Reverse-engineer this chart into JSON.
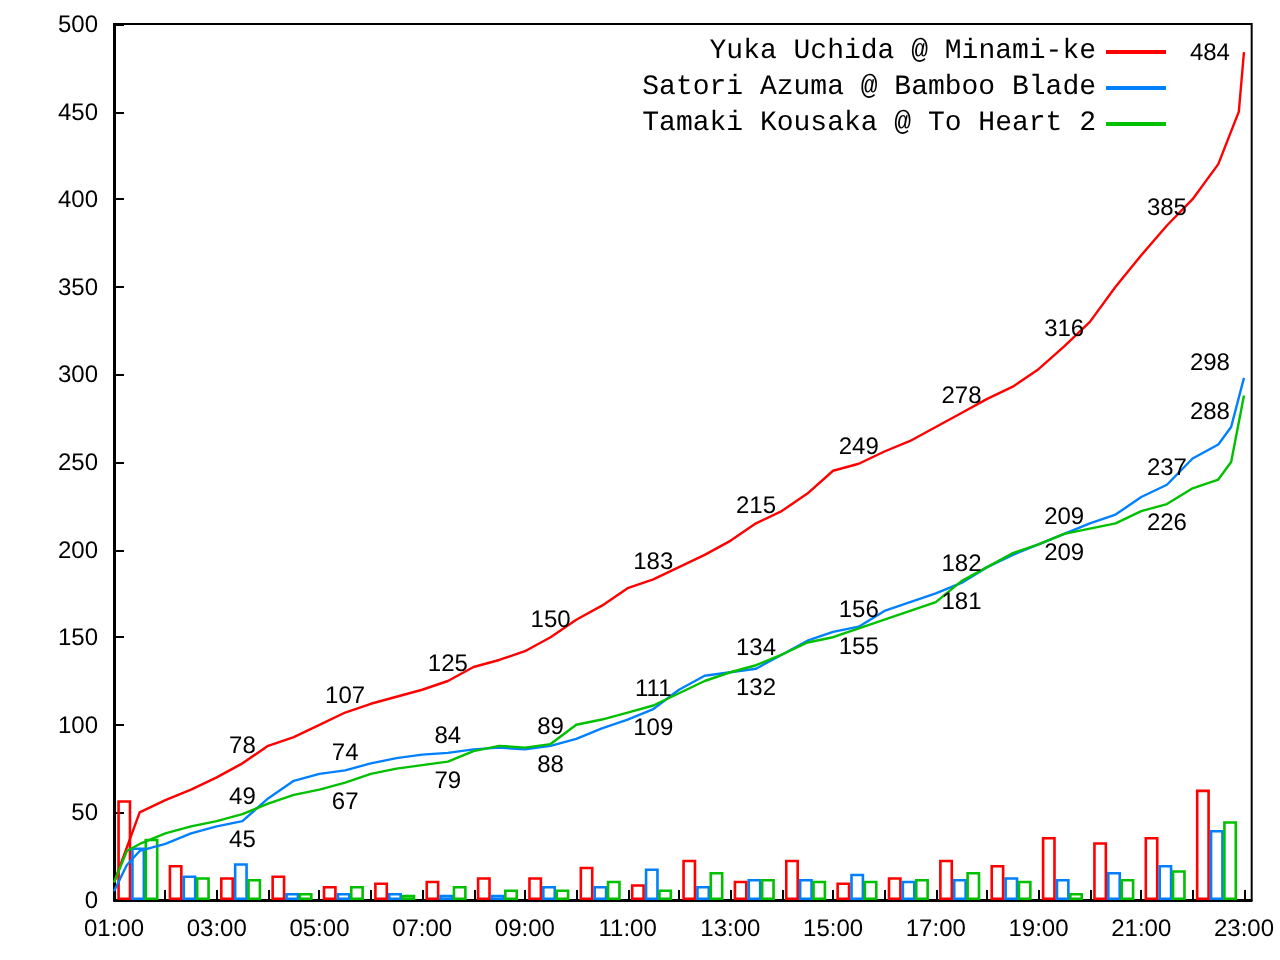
{
  "chart_data": {
    "type": "line",
    "legend": "top right",
    "marker": "none",
    "grid": false,
    "xlim": [
      1,
      23.15
    ],
    "ylim": [
      0,
      500
    ],
    "yticks": [
      0,
      50,
      100,
      150,
      200,
      250,
      300,
      350,
      400,
      450,
      500
    ],
    "xticks": [
      {
        "value": 1,
        "label": "01:00"
      },
      {
        "value": 2,
        "label": null
      },
      {
        "value": 3,
        "label": "03:00"
      },
      {
        "value": 4,
        "label": null
      },
      {
        "value": 5,
        "label": "05:00"
      },
      {
        "value": 6,
        "label": null
      },
      {
        "value": 7,
        "label": "07:00"
      },
      {
        "value": 8,
        "label": null
      },
      {
        "value": 9,
        "label": "09:00"
      },
      {
        "value": 10,
        "label": null
      },
      {
        "value": 11,
        "label": "11:00"
      },
      {
        "value": 12,
        "label": null
      },
      {
        "value": 13,
        "label": "13:00"
      },
      {
        "value": 14,
        "label": null
      },
      {
        "value": 15,
        "label": "15:00"
      },
      {
        "value": 16,
        "label": null
      },
      {
        "value": 17,
        "label": "17:00"
      },
      {
        "value": 18,
        "label": null
      },
      {
        "value": 19,
        "label": "19:00"
      },
      {
        "value": 20,
        "label": null
      },
      {
        "value": 21,
        "label": "21:00"
      },
      {
        "value": 22,
        "label": null
      },
      {
        "value": 23,
        "label": "23:00"
      }
    ],
    "series": [
      {
        "type": "bar",
        "color": "#ff0000",
        "x": [
          1.2,
          2.2,
          3.2,
          4.2,
          5.2,
          6.2,
          7.2,
          8.2,
          9.2,
          10.2,
          11.2,
          12.2,
          13.2,
          14.2,
          15.2,
          16.2,
          17.2,
          18.2,
          19.2,
          20.2,
          21.2,
          22.2
        ],
        "values": [
          57,
          20,
          13,
          14,
          8,
          10,
          11,
          13,
          13,
          19,
          9,
          23,
          11,
          23,
          10,
          13,
          23,
          20,
          36,
          33,
          36,
          63
        ]
      },
      {
        "type": "bar",
        "color": "#0080ff",
        "x": [
          1.47,
          2.47,
          3.47,
          4.47,
          5.47,
          6.47,
          7.47,
          8.47,
          9.47,
          10.47,
          11.47,
          12.47,
          13.47,
          14.47,
          15.47,
          16.47,
          17.47,
          18.47,
          19.47,
          20.47,
          21.47,
          22.47
        ],
        "values": [
          30,
          14,
          21,
          4,
          4,
          4,
          3,
          3,
          8,
          8,
          18,
          8,
          12,
          12,
          15,
          11,
          12,
          13,
          12,
          16,
          20,
          40
        ]
      },
      {
        "type": "bar",
        "color": "#00c000",
        "x": [
          1.73,
          2.73,
          3.73,
          4.73,
          5.73,
          6.73,
          7.73,
          8.73,
          9.73,
          10.73,
          11.73,
          12.73,
          13.73,
          14.73,
          15.73,
          16.73,
          17.73,
          18.73,
          19.73,
          20.73,
          21.73,
          22.73
        ],
        "values": [
          35,
          13,
          12,
          4,
          8,
          3,
          8,
          6,
          6,
          11,
          6,
          16,
          12,
          11,
          11,
          12,
          16,
          11,
          4,
          12,
          17,
          45
        ]
      },
      {
        "name": "Yuka Uchida @ Minami-ke",
        "color": "#ff0000",
        "x": [
          1,
          1.5,
          2,
          2.5,
          3,
          3.5,
          4,
          4.5,
          5,
          5.5,
          6,
          6.5,
          7,
          7.5,
          8,
          8.5,
          9,
          9.5,
          10,
          10.5,
          11,
          11.5,
          12,
          12.5,
          13,
          13.5,
          14,
          14.5,
          15,
          15.5,
          16,
          16.5,
          17,
          17.5,
          18,
          18.5,
          19,
          19.5,
          20,
          20.5,
          21,
          21.5,
          22,
          22.5,
          22.9,
          23
        ],
        "values": [
          10,
          50,
          57,
          63,
          70,
          78,
          88,
          93,
          100,
          107,
          112,
          116,
          120,
          125,
          133,
          137,
          142,
          150,
          160,
          168,
          178,
          183,
          190,
          197,
          205,
          215,
          222,
          232,
          245,
          249,
          256,
          262,
          270,
          278,
          286,
          293,
          303,
          316,
          330,
          350,
          368,
          385,
          400,
          420,
          450,
          484
        ],
        "value_labels": [
          null,
          null,
          null,
          null,
          null,
          "78",
          null,
          null,
          null,
          "107",
          null,
          null,
          null,
          "125",
          null,
          null,
          null,
          "150",
          null,
          null,
          null,
          "183",
          null,
          null,
          null,
          "215",
          null,
          null,
          null,
          "249",
          null,
          null,
          null,
          "278",
          null,
          null,
          null,
          "316",
          null,
          null,
          null,
          "385",
          null,
          null,
          null,
          "484"
        ]
      },
      {
        "name": "Satori Azuma @ Bamboo Blade",
        "color": "#0080ff",
        "x": [
          1,
          1.25,
          1.5,
          2,
          2.5,
          3,
          3.5,
          4,
          4.5,
          5,
          5.5,
          6,
          6.5,
          7,
          7.5,
          8,
          8.5,
          9,
          9.5,
          10,
          10.5,
          11,
          11.5,
          12,
          12.5,
          13,
          13.5,
          14,
          14.5,
          15,
          15.5,
          16,
          16.5,
          17,
          17.5,
          18,
          18.5,
          19,
          19.5,
          20,
          20.5,
          21,
          21.5,
          22,
          22.5,
          22.75,
          23
        ],
        "values": [
          5,
          20,
          28,
          32,
          38,
          42,
          45,
          58,
          68,
          72,
          74,
          78,
          81,
          83,
          84,
          86,
          87,
          86,
          88,
          92,
          98,
          103,
          109,
          120,
          128,
          130,
          132,
          140,
          148,
          153,
          156,
          165,
          170,
          175,
          181,
          190,
          197,
          203,
          209,
          215,
          220,
          230,
          237,
          252,
          260,
          270,
          298
        ],
        "value_labels": [
          null,
          null,
          null,
          null,
          null,
          null,
          "45",
          null,
          null,
          null,
          "74",
          null,
          null,
          null,
          "84",
          null,
          null,
          null,
          "88",
          null,
          null,
          null,
          "109",
          null,
          null,
          null,
          "132",
          null,
          null,
          null,
          "156",
          null,
          null,
          null,
          "181",
          null,
          null,
          null,
          "209",
          null,
          null,
          null,
          "237",
          null,
          null,
          null,
          "298"
        ]
      },
      {
        "name": "Tamaki Kousaka @ To Heart 2",
        "color": "#00c000",
        "x": [
          1,
          1.25,
          1.5,
          2,
          2.5,
          3,
          3.5,
          4,
          4.5,
          5,
          5.5,
          6,
          6.5,
          7,
          7.5,
          8,
          8.5,
          9,
          9.5,
          10,
          10.5,
          11,
          11.5,
          12,
          12.5,
          13,
          13.5,
          14,
          14.5,
          15,
          15.5,
          16,
          16.5,
          17,
          17.5,
          18,
          18.5,
          19,
          19.5,
          20,
          20.5,
          21,
          21.5,
          22,
          22.5,
          22.75,
          23
        ],
        "values": [
          10,
          28,
          32,
          38,
          42,
          45,
          49,
          55,
          60,
          63,
          67,
          72,
          75,
          77,
          79,
          85,
          88,
          87,
          89,
          100,
          103,
          107,
          111,
          118,
          125,
          130,
          134,
          140,
          147,
          150,
          155,
          160,
          165,
          170,
          182,
          190,
          198,
          203,
          209,
          212,
          215,
          222,
          226,
          235,
          240,
          250,
          288
        ],
        "value_labels": [
          null,
          null,
          null,
          null,
          null,
          null,
          "49",
          null,
          null,
          null,
          "67",
          null,
          null,
          null,
          "79",
          null,
          null,
          null,
          "89",
          null,
          null,
          null,
          "111",
          null,
          null,
          null,
          "134",
          null,
          null,
          null,
          "155",
          null,
          null,
          null,
          "182",
          null,
          null,
          null,
          "209",
          null,
          null,
          null,
          "226",
          null,
          null,
          null,
          "288"
        ]
      }
    ]
  }
}
